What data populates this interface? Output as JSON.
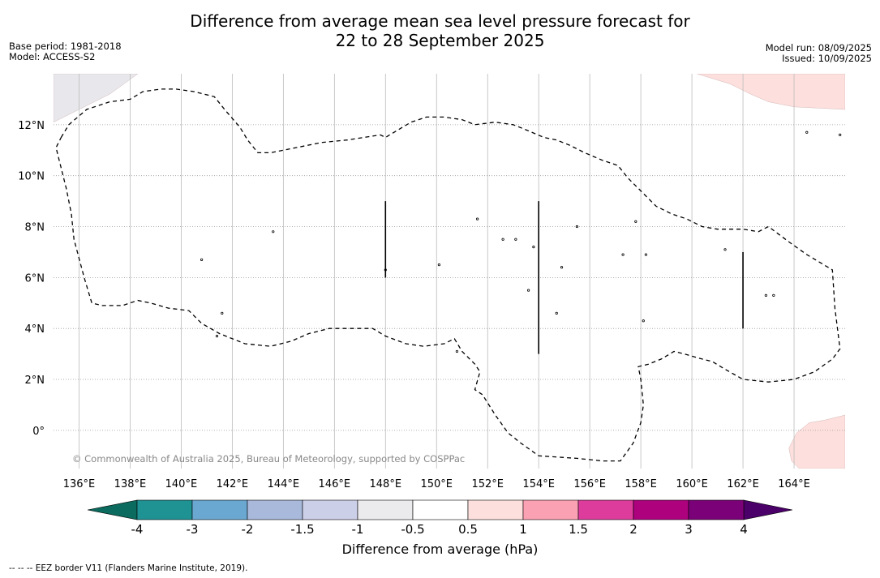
{
  "title": {
    "line1": "Difference from average mean sea level pressure forecast for",
    "line2": "22 to 28 September 2025"
  },
  "meta_left": {
    "base_period": "Base period: 1981-2018",
    "model": "Model: ACCESS-S2"
  },
  "meta_right": {
    "model_run": "Model run: 08/09/2025",
    "issued": "Issued: 10/09/2025"
  },
  "map": {
    "lon_range": [
      135,
      166
    ],
    "lat_range": [
      -1.5,
      14
    ],
    "lon_ticks": [
      {
        "value": 136,
        "label": "136°E"
      },
      {
        "value": 138,
        "label": "138°E"
      },
      {
        "value": 140,
        "label": "140°E"
      },
      {
        "value": 142,
        "label": "142°E"
      },
      {
        "value": 144,
        "label": "144°E"
      },
      {
        "value": 146,
        "label": "146°E"
      },
      {
        "value": 148,
        "label": "148°E"
      },
      {
        "value": 150,
        "label": "150°E"
      },
      {
        "value": 152,
        "label": "152°E"
      },
      {
        "value": 154,
        "label": "154°E"
      },
      {
        "value": 156,
        "label": "156°E"
      },
      {
        "value": 158,
        "label": "158°E"
      },
      {
        "value": 160,
        "label": "160°E"
      },
      {
        "value": 162,
        "label": "162°E"
      },
      {
        "value": 164,
        "label": "164°E"
      }
    ],
    "lat_ticks": [
      {
        "value": 12,
        "label": "12°N"
      },
      {
        "value": 10,
        "label": "10°N"
      },
      {
        "value": 8,
        "label": "8°N"
      },
      {
        "value": 6,
        "label": "6°N"
      },
      {
        "value": 4,
        "label": "4°N"
      },
      {
        "value": 2,
        "label": "2°N"
      },
      {
        "value": 0,
        "label": "0°"
      }
    ],
    "eez_border": [
      [
        135.3,
        11.5
      ],
      [
        135.6,
        12.0
      ],
      [
        136.3,
        12.6
      ],
      [
        137.2,
        12.9
      ],
      [
        138.0,
        13.0
      ],
      [
        138.5,
        13.3
      ],
      [
        139.2,
        13.4
      ],
      [
        139.8,
        13.4
      ],
      [
        140.5,
        13.3
      ],
      [
        141.3,
        13.1
      ],
      [
        141.7,
        12.6
      ],
      [
        142.3,
        11.9
      ],
      [
        142.6,
        11.4
      ],
      [
        143.0,
        10.9
      ],
      [
        143.5,
        10.9
      ],
      [
        144.5,
        11.1
      ],
      [
        145.5,
        11.3
      ],
      [
        146.5,
        11.4
      ],
      [
        147.8,
        11.6
      ],
      [
        148.0,
        11.5
      ],
      [
        148.5,
        11.8
      ],
      [
        149.0,
        12.1
      ],
      [
        149.6,
        12.3
      ],
      [
        150.3,
        12.3
      ],
      [
        151.0,
        12.2
      ],
      [
        151.5,
        12.0
      ],
      [
        152.3,
        12.1
      ],
      [
        153.0,
        12.0
      ],
      [
        153.5,
        11.8
      ],
      [
        154.2,
        11.5
      ],
      [
        154.7,
        11.4
      ],
      [
        155.2,
        11.2
      ],
      [
        155.8,
        10.9
      ],
      [
        156.5,
        10.6
      ],
      [
        157.1,
        10.4
      ],
      [
        157.5,
        9.9
      ],
      [
        158.0,
        9.4
      ],
      [
        158.6,
        8.8
      ],
      [
        159.2,
        8.5
      ],
      [
        159.8,
        8.3
      ],
      [
        160.4,
        8.0
      ],
      [
        161.0,
        7.9
      ],
      [
        162.0,
        7.9
      ],
      [
        162.6,
        7.8
      ],
      [
        163.0,
        8.0
      ],
      [
        163.8,
        7.4
      ],
      [
        164.5,
        6.9
      ],
      [
        165.5,
        6.3
      ],
      [
        165.6,
        4.8
      ],
      [
        165.8,
        3.2
      ],
      [
        165.5,
        2.8
      ],
      [
        164.8,
        2.3
      ],
      [
        164.0,
        2.0
      ],
      [
        163.0,
        1.9
      ],
      [
        162.0,
        2.0
      ],
      [
        161.3,
        2.4
      ],
      [
        160.8,
        2.7
      ],
      [
        160.4,
        2.8
      ],
      [
        159.7,
        3.0
      ],
      [
        159.3,
        3.1
      ],
      [
        158.8,
        2.8
      ],
      [
        158.3,
        2.6
      ],
      [
        157.9,
        2.5
      ],
      [
        158.0,
        2.0
      ],
      [
        158.1,
        1.0
      ],
      [
        158.0,
        0.3
      ],
      [
        157.7,
        -0.5
      ],
      [
        157.2,
        -1.2
      ],
      [
        156.5,
        -1.2
      ],
      [
        155.5,
        -1.1
      ],
      [
        154.0,
        -1.0
      ],
      [
        153.3,
        -0.5
      ],
      [
        152.8,
        -0.1
      ],
      [
        152.3,
        0.6
      ],
      [
        151.8,
        1.4
      ],
      [
        151.5,
        1.6
      ],
      [
        151.7,
        2.3
      ],
      [
        151.5,
        2.6
      ],
      [
        151.0,
        3.1
      ],
      [
        150.7,
        3.6
      ],
      [
        150.3,
        3.4
      ],
      [
        149.5,
        3.3
      ],
      [
        148.8,
        3.4
      ],
      [
        148.0,
        3.7
      ],
      [
        147.5,
        4.0
      ],
      [
        146.5,
        4.0
      ],
      [
        145.8,
        4.0
      ],
      [
        145.0,
        3.8
      ],
      [
        144.3,
        3.5
      ],
      [
        143.5,
        3.3
      ],
      [
        142.5,
        3.4
      ],
      [
        141.5,
        3.8
      ],
      [
        140.8,
        4.2
      ],
      [
        140.3,
        4.7
      ],
      [
        139.5,
        4.8
      ],
      [
        138.8,
        5.0
      ],
      [
        138.3,
        5.1
      ],
      [
        137.7,
        4.9
      ],
      [
        136.9,
        4.9
      ],
      [
        136.5,
        5.0
      ],
      [
        136.2,
        6.0
      ],
      [
        135.8,
        7.5
      ],
      [
        135.7,
        8.5
      ],
      [
        135.5,
        9.5
      ],
      [
        135.3,
        10.3
      ],
      [
        135.1,
        11.1
      ],
      [
        135.3,
        11.5
      ]
    ],
    "boundary_lines": [
      [
        [
          148.0,
          9.0
        ],
        [
          148.0,
          6.0
        ]
      ],
      [
        [
          154.0,
          9.0
        ],
        [
          154.0,
          3.0
        ]
      ],
      [
        [
          162.0,
          7.0
        ],
        [
          162.0,
          4.0
        ]
      ]
    ],
    "shaded_regions": [
      {
        "category": "-1 to -0.5",
        "color": "#e8e8ec",
        "points": [
          [
            135,
            12.1
          ],
          [
            137.2,
            13.2
          ],
          [
            138.3,
            14
          ],
          [
            135,
            14
          ]
        ]
      },
      {
        "category": "0.5 to 1",
        "color": "#fde0dd",
        "points": [
          [
            160.2,
            14
          ],
          [
            161.5,
            13.6
          ],
          [
            162.3,
            13.2
          ],
          [
            163.0,
            12.9
          ],
          [
            164.0,
            12.7
          ],
          [
            166,
            12.6
          ],
          [
            166,
            14
          ]
        ]
      },
      {
        "category": "0.5 to 1",
        "color": "#fde0dd",
        "points": [
          [
            166,
            0.6
          ],
          [
            165.2,
            0.4
          ],
          [
            164.6,
            0.3
          ],
          [
            164.1,
            -0.1
          ],
          [
            163.8,
            -0.7
          ],
          [
            163.9,
            -1.2
          ],
          [
            164.2,
            -1.5
          ],
          [
            166,
            -1.5
          ]
        ]
      }
    ],
    "islands": [
      [
        140.8,
        6.7
      ],
      [
        141.4,
        3.7
      ],
      [
        141.6,
        4.6
      ],
      [
        143.6,
        7.8
      ],
      [
        150.1,
        6.5
      ],
      [
        151.6,
        8.3
      ],
      [
        153.1,
        7.5
      ],
      [
        153.8,
        7.2
      ],
      [
        154.9,
        6.4
      ],
      [
        155.5,
        8.0
      ],
      [
        157.3,
        6.9
      ],
      [
        158.2,
        6.9
      ],
      [
        158.1,
        4.3
      ],
      [
        162.9,
        5.3
      ],
      [
        163.2,
        5.3
      ],
      [
        148.0,
        6.3
      ],
      [
        153.6,
        5.5
      ],
      [
        154.7,
        4.6
      ],
      [
        150.8,
        3.1
      ],
      [
        152.6,
        7.5
      ],
      [
        157.8,
        8.2
      ],
      [
        161.3,
        7.1
      ],
      [
        164.5,
        11.7
      ],
      [
        165.8,
        11.6
      ]
    ],
    "attribution": "© Commonwealth of Australia 2025, Bureau of Meteorology, supported by COSPPac"
  },
  "colorbar": {
    "ticks": [
      "-4",
      "-3",
      "-2",
      "-1.5",
      "-1",
      "-0.5",
      "0.5",
      "1",
      "1.5",
      "2",
      "3",
      "4"
    ],
    "colors": [
      "#1f9294",
      "#6aa8d2",
      "#a8b9dc",
      "#cccfe8",
      "#ebebed",
      "#ffffff",
      "#fde0dd",
      "#fba1b4",
      "#dd3c9c",
      "#ad017e",
      "#7a0177"
    ],
    "under_color": "#0b6b5e",
    "over_color": "#4a0068",
    "label": "Difference from average (hPa)"
  },
  "footnote": "--  --  -- EEZ border V11 (Flanders Marine Institute, 2019)."
}
